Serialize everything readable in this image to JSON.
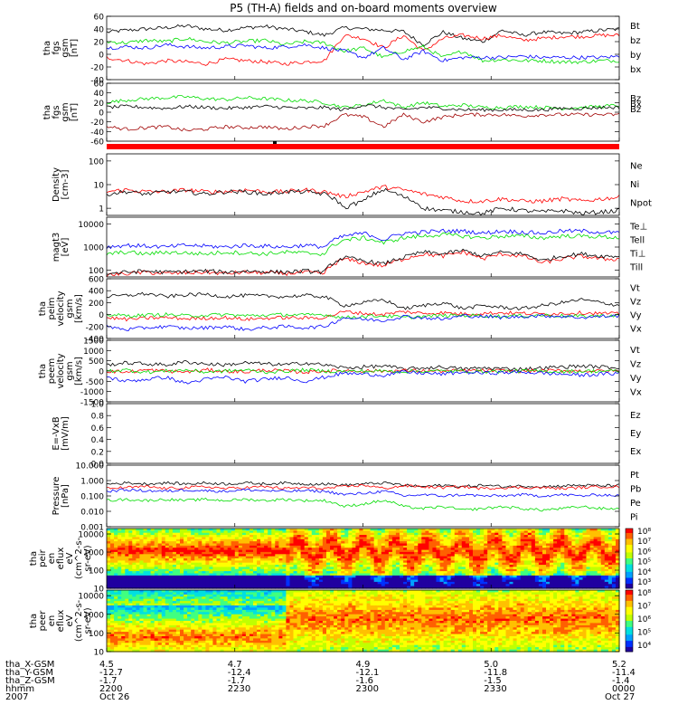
{
  "title": "P5 (TH-A) fields and on-board moments overview",
  "time_axis": {
    "tick_labels": [
      "2200",
      "2230",
      "2300",
      "2330",
      "0000"
    ],
    "row_labels": [
      "tha_X-GSM",
      "tha_Y-GSM",
      "tha_Z-GSM",
      "hhmm",
      "2007"
    ],
    "x_gsm": [
      "4.5",
      "4.7",
      "4.9",
      "5.0",
      "5.2"
    ],
    "y_gsm": [
      "-12.7",
      "-12.4",
      "-12.1",
      "-11.8",
      "-11.4"
    ],
    "z_gsm": [
      "-1.7",
      "-1.7",
      "-1.6",
      "-1.5",
      "-1.4"
    ],
    "date_start": "Oct 26",
    "date_end": "Oct 27"
  },
  "colors": {
    "black": "#000000",
    "red": "#ff0000",
    "green": "#00dd00",
    "blue": "#0000ff",
    "darkred": "#a00000"
  },
  "chart_data": [
    {
      "type": "line",
      "id": "fgs_gsm",
      "ylabel_lines": [
        "tha",
        "fgs",
        "gsm",
        "[nT]"
      ],
      "ylim": [
        -40,
        60
      ],
      "yticks": [
        "60",
        "40",
        "20",
        "0",
        "-20",
        "-40"
      ],
      "series": [
        {
          "name": "Bt",
          "color": "#000000",
          "values": [
            35,
            38,
            40,
            42,
            45,
            40,
            38,
            42,
            44,
            40,
            36,
            30,
            42,
            40,
            38,
            36,
            15,
            35,
            25,
            20,
            38,
            30,
            35,
            33,
            35,
            38,
            40
          ]
        },
        {
          "name": "bz",
          "color": "#ff0000",
          "values": [
            -5,
            -10,
            -15,
            -10,
            -12,
            -15,
            -8,
            -10,
            -12,
            -15,
            -12,
            -10,
            30,
            25,
            10,
            30,
            5,
            25,
            30,
            25,
            30,
            22,
            25,
            28,
            28,
            30,
            30
          ]
        },
        {
          "name": "by",
          "color": "#00dd00",
          "values": [
            20,
            18,
            22,
            20,
            25,
            20,
            18,
            20,
            22,
            15,
            20,
            18,
            5,
            10,
            -5,
            5,
            12,
            -5,
            5,
            -10,
            -8,
            -10,
            -10,
            -12,
            -12,
            -10,
            -10
          ]
        },
        {
          "name": "bx",
          "color": "#0000ff",
          "values": [
            10,
            12,
            10,
            15,
            12,
            10,
            12,
            14,
            10,
            12,
            15,
            10,
            5,
            -5,
            10,
            -8,
            5,
            -10,
            -5,
            -5,
            -5,
            -3,
            -5,
            -5,
            -5,
            -5,
            -3
          ]
        }
      ]
    },
    {
      "type": "line",
      "id": "fgs_gsm_2",
      "ylabel_lines": [
        "tha",
        "fgs",
        "gsm",
        "[nT]"
      ],
      "ylim": [
        -60,
        60
      ],
      "yticks": [
        "60",
        "40",
        "20",
        "0",
        "-20",
        "-40",
        "-60"
      ],
      "series": [
        {
          "name": "Bz",
          "color": "#00dd00",
          "values": [
            20,
            25,
            28,
            30,
            32,
            28,
            26,
            30,
            28,
            25,
            24,
            20,
            10,
            15,
            25,
            10,
            20,
            12,
            15,
            10,
            10,
            12,
            10,
            8,
            10,
            12,
            15
          ]
        },
        {
          "name": "Bx",
          "color": "#000000",
          "values": [
            10,
            12,
            10,
            8,
            12,
            10,
            8,
            10,
            12,
            10,
            8,
            10,
            5,
            15,
            10,
            5,
            10,
            8,
            5,
            5,
            5,
            5,
            5,
            8,
            8,
            10,
            10
          ]
        },
        {
          "name": "Bz",
          "color": "#a00000",
          "values": [
            -30,
            -35,
            -32,
            -30,
            -38,
            -35,
            -30,
            -32,
            -30,
            -35,
            -30,
            -28,
            -5,
            -10,
            -30,
            -5,
            -20,
            -10,
            -5,
            -5,
            -5,
            -8,
            -5,
            -5,
            -5,
            -5,
            -5
          ]
        }
      ]
    },
    {
      "type": "line",
      "id": "density",
      "scale": "log",
      "ylabel_lines": [
        "Density",
        "[cm-3]"
      ],
      "ylim": [
        0.5,
        200
      ],
      "yticks": [
        "100",
        "10",
        "1"
      ],
      "series": [
        {
          "name": "Ne",
          "color": "#ff0000",
          "values": [
            5,
            6,
            5,
            5,
            6,
            5,
            5,
            6,
            5,
            5,
            6,
            5,
            3,
            5,
            8,
            6,
            4,
            3,
            2,
            2,
            2.5,
            2,
            2,
            2.5,
            2,
            2.5,
            3
          ]
        },
        {
          "name": "Ni",
          "color": "#000000",
          "values": [
            4,
            5,
            4,
            5,
            5,
            4,
            5,
            5,
            4,
            5,
            5,
            4,
            1,
            2,
            6,
            3,
            1,
            0.8,
            0.7,
            0.6,
            1,
            0.8,
            0.7,
            0.8,
            0.6,
            0.7,
            0.8
          ]
        },
        {
          "name": "Npot",
          "color": "#0000ff",
          "values": []
        }
      ]
    },
    {
      "type": "line",
      "id": "temperature",
      "scale": "log",
      "ylabel_lines": [
        "magt3",
        "[eV]"
      ],
      "ylim": [
        50,
        20000
      ],
      "yticks": [
        "10000",
        "1000",
        "100"
      ],
      "series": [
        {
          "name": "Te⊥",
          "color": "#ff0000",
          "values": [
            60,
            70,
            80,
            70,
            75,
            80,
            70,
            80,
            75,
            70,
            80,
            70,
            300,
            200,
            150,
            300,
            500,
            400,
            600,
            300,
            500,
            400,
            200,
            300,
            400,
            300,
            300
          ]
        },
        {
          "name": "Tell",
          "color": "#000000",
          "values": [
            70,
            80,
            90,
            80,
            85,
            90,
            80,
            90,
            85,
            80,
            90,
            80,
            350,
            250,
            180,
            350,
            600,
            500,
            700,
            400,
            600,
            500,
            250,
            400,
            500,
            400,
            400
          ]
        },
        {
          "name": "Ti⊥",
          "color": "#0000ff",
          "values": [
            1000,
            1200,
            1100,
            1000,
            1200,
            1100,
            1000,
            1200,
            1100,
            1000,
            1200,
            1000,
            3000,
            4000,
            2000,
            4000,
            4500,
            5000,
            5000,
            4000,
            5000,
            4500,
            4000,
            5000,
            5000,
            4500,
            4000
          ]
        },
        {
          "name": "Till",
          "color": "#00dd00",
          "values": [
            500,
            600,
            500,
            600,
            550,
            500,
            600,
            550,
            500,
            600,
            550,
            500,
            2000,
            2500,
            1500,
            2500,
            3000,
            3500,
            3000,
            2500,
            3000,
            3000,
            2500,
            3000,
            3000,
            2800,
            2500
          ]
        }
      ]
    },
    {
      "type": "line",
      "id": "peim_velocity",
      "ylabel_lines": [
        "tha",
        "peim",
        "velocity",
        "gsm",
        "[km/s]"
      ],
      "ylim": [
        -400,
        600
      ],
      "yticks": [
        "600",
        "400",
        "200",
        "0",
        "-200",
        "-400"
      ],
      "series": [
        {
          "name": "Vt",
          "color": "#000000",
          "values": [
            300,
            320,
            350,
            300,
            330,
            340,
            300,
            320,
            310,
            300,
            320,
            300,
            150,
            200,
            250,
            100,
            150,
            200,
            100,
            150,
            120,
            100,
            150,
            200,
            250,
            200,
            150
          ]
        },
        {
          "name": "Vz",
          "color": "#ff0000",
          "values": [
            -50,
            -80,
            -60,
            -50,
            -70,
            -60,
            -50,
            -80,
            -60,
            -50,
            -60,
            -50,
            50,
            20,
            0,
            50,
            20,
            30,
            10,
            20,
            30,
            20,
            10,
            20,
            30,
            20,
            10
          ]
        },
        {
          "name": "Vy",
          "color": "#00dd00",
          "values": [
            0,
            -20,
            -10,
            0,
            -20,
            -10,
            0,
            -20,
            -10,
            0,
            -10,
            0,
            -50,
            -30,
            -20,
            -50,
            -30,
            -20,
            -10,
            -20,
            -30,
            -20,
            -10,
            -20,
            -30,
            -20,
            -10
          ]
        },
        {
          "name": "Vx",
          "color": "#0000ff",
          "values": [
            -200,
            -250,
            -220,
            -200,
            -230,
            -220,
            -200,
            -250,
            -220,
            -200,
            -220,
            -200,
            -50,
            -80,
            -100,
            -30,
            -50,
            -80,
            -20,
            -30,
            -50,
            -30,
            -20,
            -30,
            -50,
            -30,
            -20
          ]
        }
      ]
    },
    {
      "type": "line",
      "id": "peem_velocity",
      "ylabel_lines": [
        "tha",
        "peem",
        "velocity",
        "gsm",
        "[km/s]"
      ],
      "ylim": [
        -1500,
        1500
      ],
      "yticks": [
        "1500",
        "1000",
        "500",
        "0",
        "-500",
        "-1000",
        "-1500"
      ],
      "series": [
        {
          "name": "Vt",
          "color": "#000000",
          "values": [
            300,
            400,
            350,
            300,
            450,
            350,
            300,
            400,
            350,
            300,
            400,
            300,
            150,
            200,
            250,
            100,
            150,
            200,
            100,
            150,
            120,
            100,
            150,
            200,
            250,
            200,
            150
          ]
        },
        {
          "name": "Vz",
          "color": "#ff0000",
          "values": [
            0,
            -50,
            50,
            0,
            -50,
            50,
            0,
            -50,
            50,
            0,
            -50,
            0,
            20,
            10,
            0,
            20,
            10,
            0,
            10,
            20,
            10,
            0,
            10,
            20,
            10,
            0,
            10
          ]
        },
        {
          "name": "Vy",
          "color": "#00dd00",
          "values": [
            0,
            50,
            -50,
            0,
            50,
            -50,
            0,
            50,
            -50,
            0,
            50,
            0,
            -20,
            -10,
            0,
            -20,
            -10,
            0,
            -10,
            -20,
            -10,
            0,
            -10,
            -20,
            -10,
            0,
            -10
          ]
        },
        {
          "name": "Vx",
          "color": "#0000ff",
          "values": [
            -300,
            -500,
            -400,
            -300,
            -600,
            -400,
            -300,
            -500,
            -400,
            -300,
            -500,
            -300,
            -100,
            -150,
            -200,
            -50,
            -100,
            -150,
            -50,
            -100,
            -80,
            -50,
            -100,
            -150,
            -200,
            -150,
            -100
          ]
        }
      ]
    },
    {
      "type": "line",
      "id": "efield",
      "ylabel_lines": [
        "E=-VxB",
        "[mV/m]"
      ],
      "ylim": [
        0,
        1.0
      ],
      "yticks": [
        "1.0",
        "0.8",
        "0.6",
        "0.4",
        "0.2",
        "0.0"
      ],
      "series": [
        {
          "name": "Ez",
          "color": "#ff0000",
          "values": []
        },
        {
          "name": "Ey",
          "color": "#00dd00",
          "values": []
        },
        {
          "name": "Ex",
          "color": "#0000ff",
          "values": []
        }
      ]
    },
    {
      "type": "line",
      "id": "pressure",
      "scale": "log",
      "ylabel_lines": [
        "Pressure",
        "[nPa]"
      ],
      "ylim": [
        0.001,
        10
      ],
      "yticks": [
        "10.000",
        "1.000",
        "0.100",
        "0.010",
        "0.001"
      ],
      "series": [
        {
          "name": "Pt",
          "color": "#000000",
          "values": [
            0.6,
            0.7,
            0.6,
            0.7,
            0.6,
            0.7,
            0.6,
            0.7,
            0.6,
            0.7,
            0.6,
            0.6,
            0.5,
            0.6,
            0.7,
            0.5,
            0.4,
            0.5,
            0.4,
            0.5,
            0.4,
            0.45,
            0.4,
            0.45,
            0.5,
            0.45,
            0.5
          ]
        },
        {
          "name": "Pb",
          "color": "#ff0000",
          "values": [
            0.3,
            0.35,
            0.4,
            0.3,
            0.35,
            0.4,
            0.3,
            0.35,
            0.4,
            0.3,
            0.35,
            0.3,
            0.4,
            0.5,
            0.3,
            0.45,
            0.4,
            0.35,
            0.4,
            0.3,
            0.35,
            0.35,
            0.35,
            0.3,
            0.35,
            0.4,
            0.4
          ]
        },
        {
          "name": "Pe",
          "color": "#00dd00",
          "values": [
            0.05,
            0.06,
            0.05,
            0.06,
            0.05,
            0.06,
            0.05,
            0.06,
            0.05,
            0.06,
            0.05,
            0.05,
            0.02,
            0.03,
            0.05,
            0.02,
            0.015,
            0.02,
            0.012,
            0.015,
            0.02,
            0.015,
            0.012,
            0.015,
            0.02,
            0.015,
            0.015
          ]
        },
        {
          "name": "Pi",
          "color": "#0000ff",
          "values": [
            0.2,
            0.25,
            0.22,
            0.2,
            0.25,
            0.22,
            0.2,
            0.25,
            0.22,
            0.2,
            0.22,
            0.2,
            0.12,
            0.15,
            0.2,
            0.1,
            0.12,
            0.1,
            0.12,
            0.1,
            0.1,
            0.12,
            0.1,
            0.12,
            0.1,
            0.12,
            0.1
          ]
        }
      ]
    },
    {
      "type": "heatmap",
      "id": "peir_spectrogram",
      "scale": "log",
      "ylabel_lines": [
        "tha",
        "peir",
        "en",
        "eflux",
        "eV",
        "(cm^2-s-",
        "sr-eV)"
      ],
      "ylim": [
        10,
        20000
      ],
      "yticks": [
        "10000",
        "1000",
        "100",
        "10"
      ],
      "colorbar_ticks": [
        "10⁸",
        "10⁷",
        "10⁶",
        "10⁵",
        "10⁴",
        "10³"
      ]
    },
    {
      "type": "heatmap",
      "id": "peer_spectrogram",
      "scale": "log",
      "ylabel_lines": [
        "tha",
        "peer",
        "en",
        "eflux",
        "eV",
        "(cm^2-s-",
        "sr-eV)"
      ],
      "ylim": [
        10,
        20000
      ],
      "yticks": [
        "10000",
        "1000",
        "100",
        "10"
      ],
      "colorbar_ticks": [
        "10⁸",
        "10⁷",
        "10⁶",
        "10⁵",
        "10⁴"
      ]
    }
  ]
}
